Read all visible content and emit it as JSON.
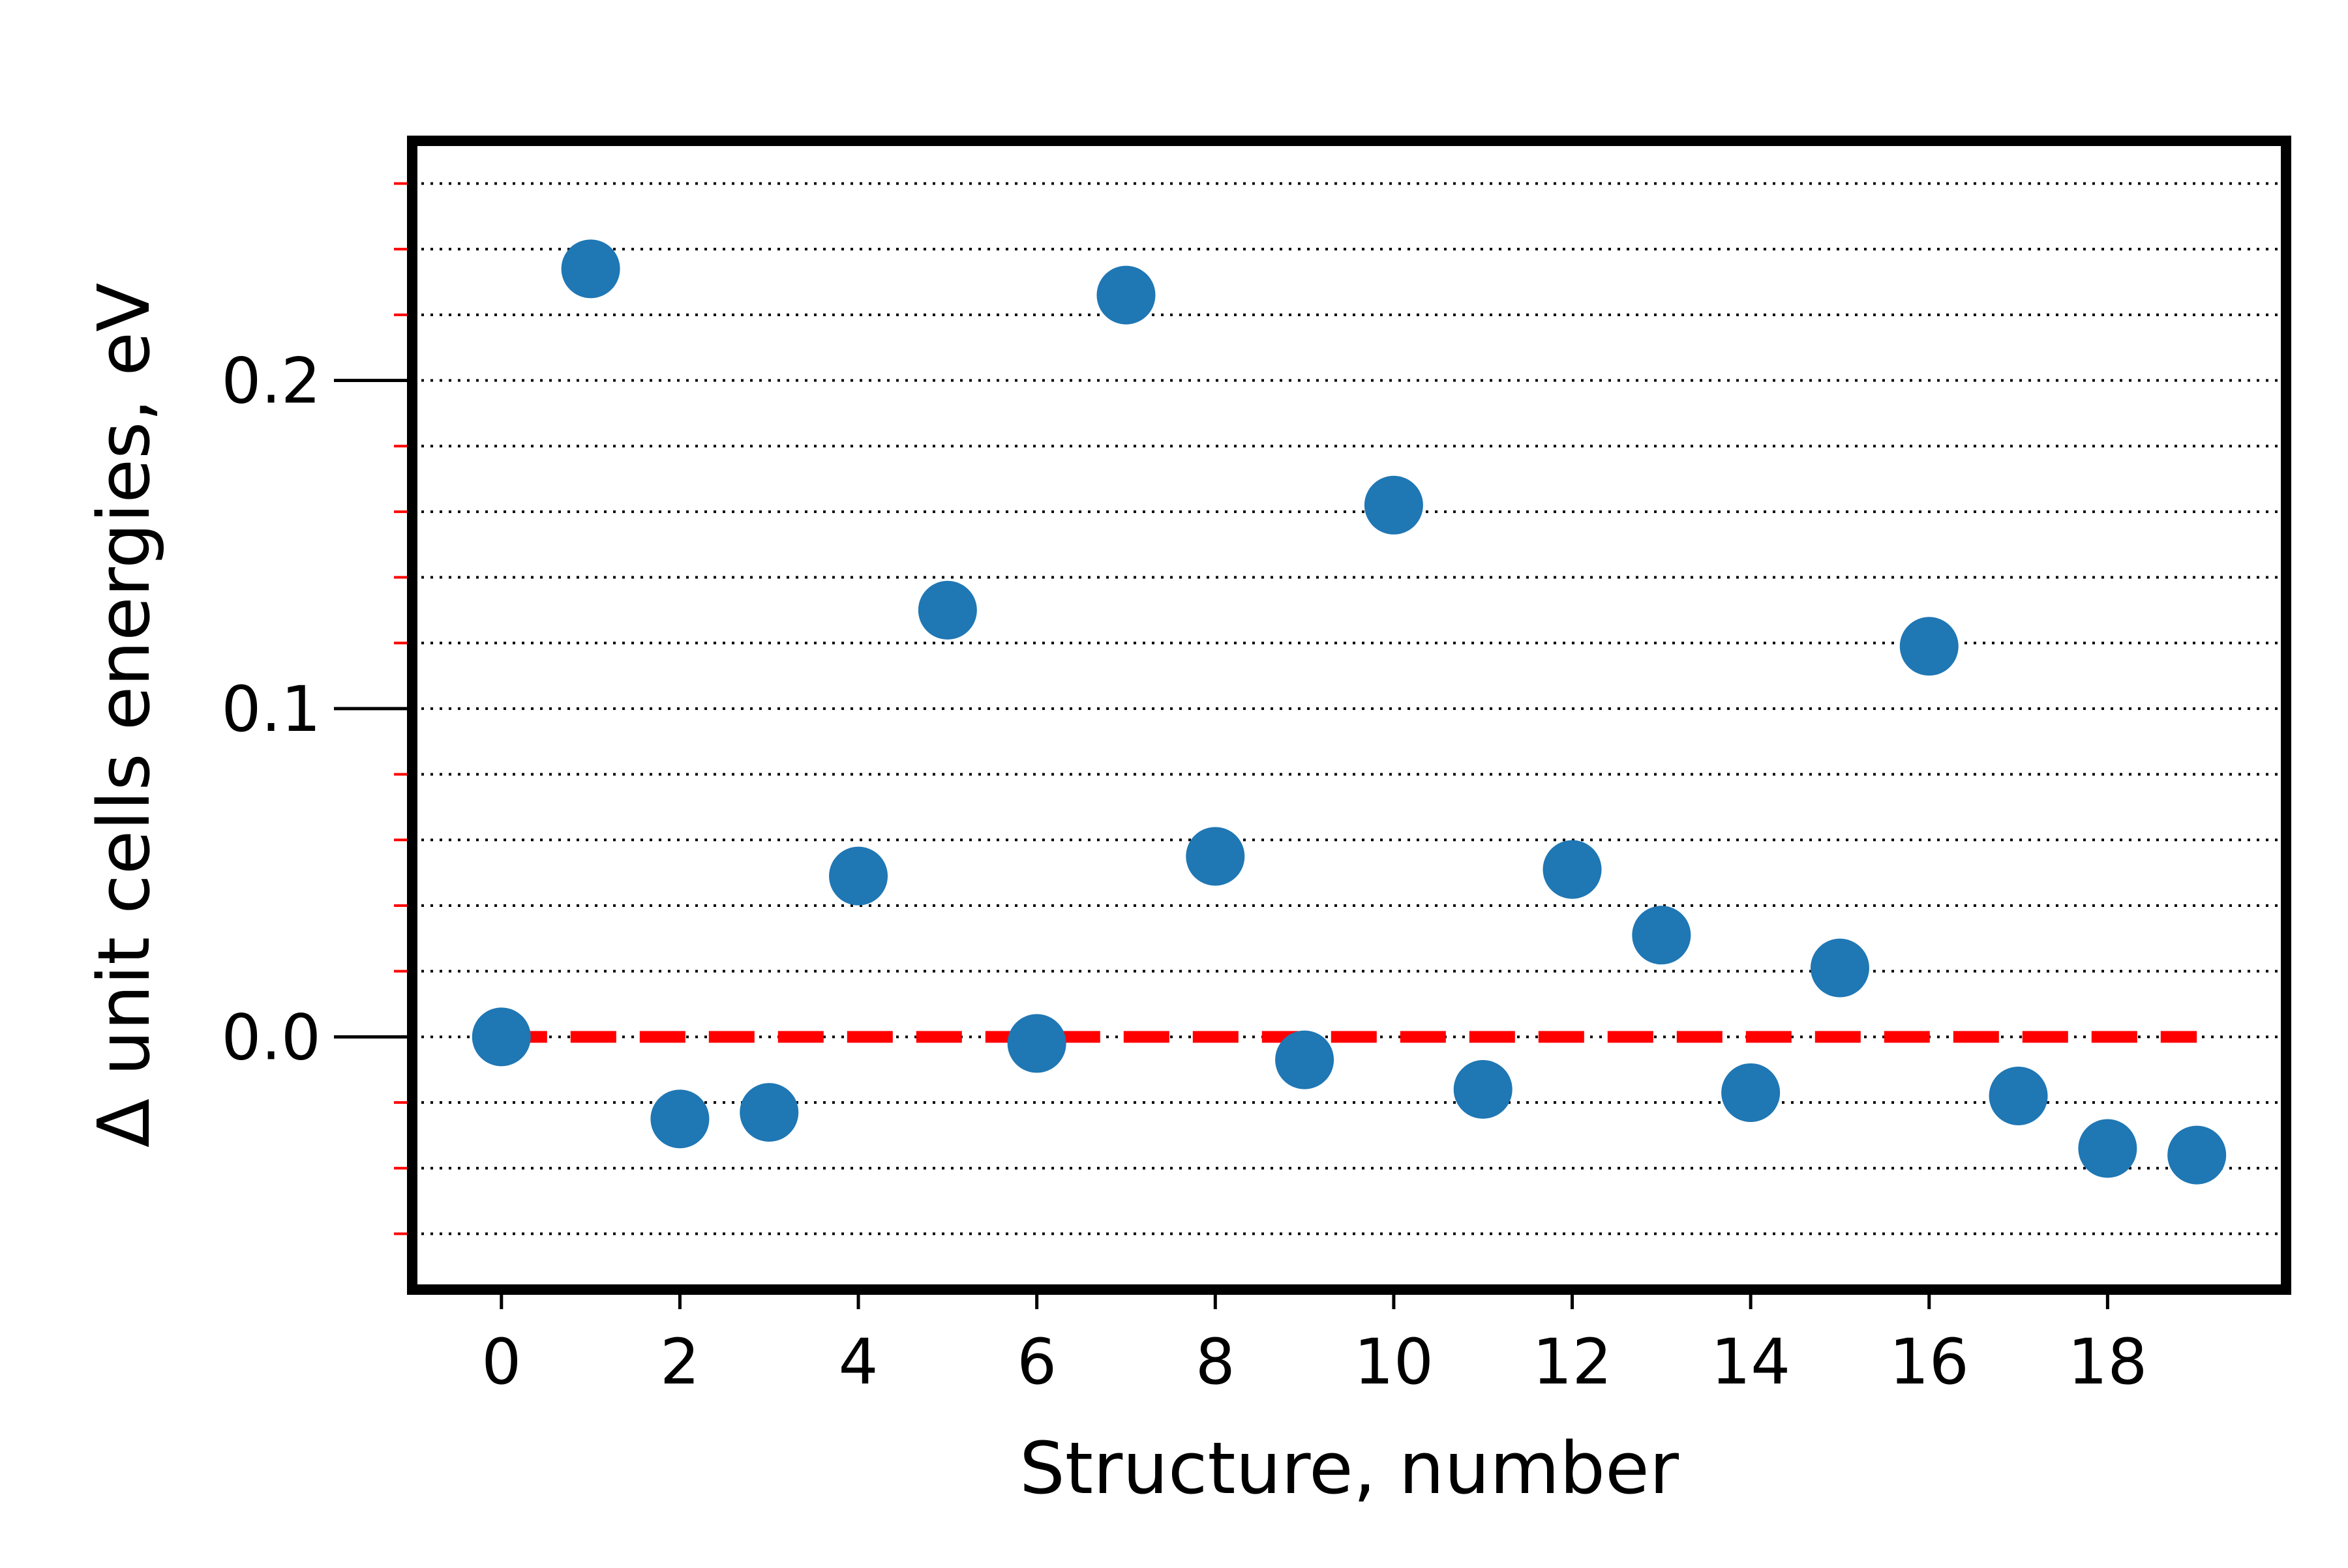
{
  "chart_data": {
    "type": "scatter",
    "title": "",
    "xlabel": "Structure, number",
    "ylabel": "Δ unit cells energies, eV",
    "xlim": [
      -1,
      20
    ],
    "ylim": [
      -0.077,
      0.273
    ],
    "xticks": [
      0,
      2,
      4,
      6,
      8,
      10,
      12,
      14,
      16,
      18
    ],
    "yticks": [
      0.0,
      0.1,
      0.2
    ],
    "ytick_labels": [
      "0.0",
      "0.1",
      "0.2"
    ],
    "minor_ytick_step": 0.02,
    "grid": "horizontal dotted at minor y ticks",
    "series": [
      {
        "marker_color": "#1f77b4",
        "x": [
          0,
          1,
          2,
          3,
          4,
          5,
          6,
          7,
          8,
          9,
          10,
          11,
          12,
          13,
          14,
          15,
          16,
          17,
          18,
          19
        ],
        "y": [
          0.0,
          0.234,
          -0.025,
          -0.023,
          0.049,
          0.13,
          -0.002,
          0.226,
          0.055,
          -0.007,
          0.162,
          -0.016,
          0.051,
          0.031,
          -0.017,
          0.021,
          0.119,
          -0.018,
          -0.034,
          -0.036
        ]
      }
    ],
    "reference_line": {
      "y": 0.0,
      "x_from": 0,
      "x_to": 19,
      "style": "dashed",
      "color": "#ff0000"
    },
    "frame_color": "#000000",
    "minor_tick_color": "#ff0000"
  }
}
